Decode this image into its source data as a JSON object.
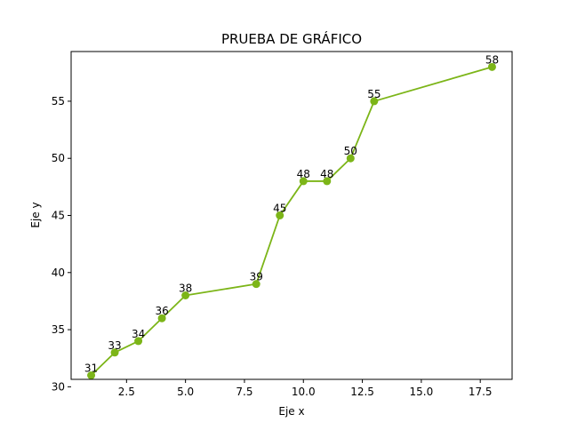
{
  "chart_data": {
    "type": "line",
    "title": "PRUEBA DE GRÁFICO",
    "xlabel": "Eje x",
    "ylabel": "Eje y",
    "xlim": [
      0.15,
      18.85
    ],
    "ylim": [
      30.65,
      59.35
    ],
    "xticks": [
      2.5,
      5.0,
      7.5,
      10.0,
      12.5,
      15.0,
      17.5
    ],
    "xtick_labels": [
      "2.5",
      "5.0",
      "7.5",
      "10.0",
      "12.5",
      "15.0",
      "17.5"
    ],
    "yticks": [
      30,
      35,
      40,
      45,
      50,
      55
    ],
    "ytick_labels": [
      "30",
      "35",
      "40",
      "45",
      "50",
      "55"
    ],
    "grid": false,
    "series": [
      {
        "x": [
          1,
          2,
          3,
          4,
          5,
          8,
          9,
          10,
          11,
          12,
          13,
          18
        ],
        "y": [
          31,
          33,
          34,
          36,
          38,
          39,
          45,
          48,
          48,
          50,
          55,
          58
        ],
        "labels": [
          "31",
          "33",
          "34",
          "36",
          "38",
          "39",
          "45",
          "48",
          "48",
          "50",
          "55",
          "58"
        ],
        "color": "#7cb518",
        "marker": "circle"
      }
    ]
  }
}
